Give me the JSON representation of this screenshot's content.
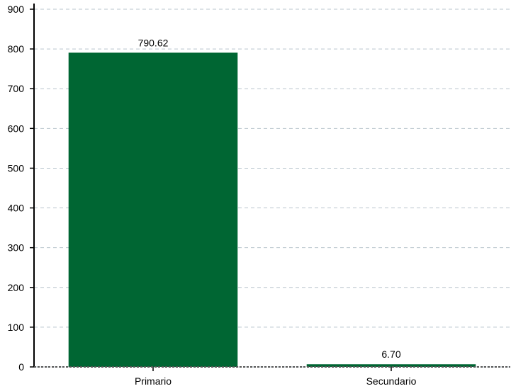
{
  "chart_data": {
    "type": "bar",
    "title": "",
    "xlabel": "",
    "ylabel": "",
    "categories": [
      "Primario",
      "Secundario"
    ],
    "values": [
      790.62,
      6.7
    ],
    "value_labels": [
      "790.62",
      "6.70"
    ],
    "ylim": [
      0,
      900
    ],
    "yticks": [
      0,
      100,
      200,
      300,
      400,
      500,
      600,
      700,
      800,
      900
    ],
    "ytick_labels": [
      "0",
      "100",
      "200",
      "300",
      "400",
      "500",
      "600",
      "700",
      "800",
      "900"
    ],
    "grid": true,
    "legend": "none",
    "bar_color": "#006633",
    "grid_color": "#b8c4cc"
  }
}
